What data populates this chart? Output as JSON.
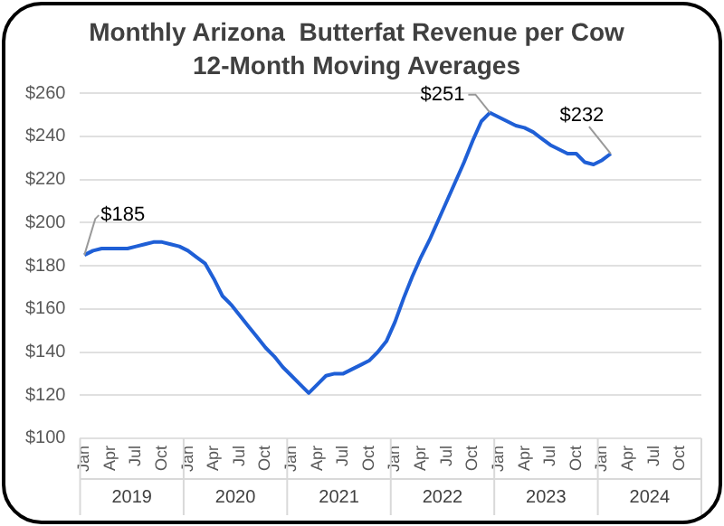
{
  "chart_data": {
    "type": "line",
    "title": "Monthly Arizona  Butterfat Revenue per Cow",
    "subtitle": "12-Month Moving Averages",
    "categories": [
      "Jan",
      null,
      null,
      "Apr",
      null,
      null,
      "Jul",
      null,
      null,
      "Oct",
      null,
      null,
      "Jan",
      null,
      null,
      "Apr",
      null,
      null,
      "Jul",
      null,
      null,
      "Oct",
      null,
      null,
      "Jan",
      null,
      null,
      "Apr",
      null,
      null,
      "Jul",
      null,
      null,
      "Oct",
      null,
      null,
      "Jan",
      null,
      null,
      "Apr",
      null,
      null,
      "Jul",
      null,
      null,
      "Oct",
      null,
      null,
      "Jan",
      null,
      null,
      "Apr",
      null,
      null,
      "Jul",
      null,
      null,
      "Oct",
      null,
      null,
      "Jan",
      null,
      null,
      "Apr",
      null,
      null,
      "Jul",
      null,
      null,
      "Oct",
      null,
      null
    ],
    "series": [
      {
        "color": "#1f5fd6",
        "values": [
          185,
          187,
          188,
          188,
          188,
          188,
          189,
          190,
          191,
          191,
          190,
          189,
          187,
          184,
          181,
          174,
          166,
          162,
          157,
          152,
          147,
          142,
          138,
          133,
          129,
          125,
          121,
          125,
          129,
          130,
          130,
          132,
          134,
          136,
          140,
          145,
          154,
          165,
          175,
          184,
          192,
          201,
          210,
          219,
          228,
          238,
          247,
          251,
          249,
          247,
          245,
          244,
          242,
          239,
          236,
          234,
          232,
          232,
          228,
          227,
          229,
          232,
          null,
          null,
          null,
          null,
          null,
          null,
          null,
          null,
          null,
          null
        ],
        "value_labels": [
          "$185",
          null,
          null,
          null,
          null,
          null,
          null,
          null,
          null,
          null,
          null,
          null,
          null,
          null,
          null,
          null,
          null,
          null,
          null,
          null,
          null,
          null,
          null,
          null,
          null,
          null,
          null,
          null,
          null,
          null,
          null,
          null,
          null,
          null,
          null,
          null,
          null,
          null,
          null,
          null,
          null,
          null,
          null,
          null,
          null,
          null,
          null,
          "$251",
          null,
          null,
          null,
          null,
          null,
          null,
          null,
          null,
          null,
          null,
          null,
          null,
          null,
          "$232",
          null,
          null,
          null,
          null,
          null,
          null,
          null,
          null,
          null,
          null
        ]
      }
    ],
    "annotations": [
      "2019",
      "2020",
      "2021",
      "2022",
      "2023",
      "2024"
    ],
    "ylim": [
      100,
      260
    ],
    "yticks": [
      {
        "value": 100,
        "label": "$100"
      },
      {
        "value": 120,
        "label": "$120"
      },
      {
        "value": 140,
        "label": "$140"
      },
      {
        "value": 160,
        "label": "$160"
      },
      {
        "value": 180,
        "label": "$180"
      },
      {
        "value": 200,
        "label": "$200"
      },
      {
        "value": 220,
        "label": "$220"
      },
      {
        "value": 240,
        "label": "$240"
      },
      {
        "value": 260,
        "label": "$260"
      }
    ],
    "grid": "y",
    "legend": false,
    "marker": "none",
    "line_style": "solid"
  }
}
